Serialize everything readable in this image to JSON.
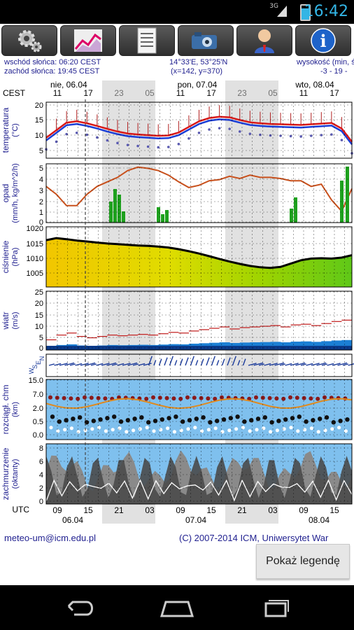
{
  "status_bar": {
    "time": "16:42",
    "network": "3G",
    "icons": [
      "signal-icon",
      "battery-charging-icon"
    ]
  },
  "toolbar": {
    "buttons": [
      {
        "icon": "gears-icon"
      },
      {
        "icon": "chart-icon"
      },
      {
        "icon": "document-icon"
      },
      {
        "icon": "camera-icon"
      },
      {
        "icon": "user-icon"
      },
      {
        "icon": "info-icon"
      }
    ]
  },
  "info": {
    "sunrise": "wschód słońca: 06:20 CEST",
    "sunset": "zachód słońca: 19:45 CEST",
    "coords": "14°33'E, 53°25'N",
    "grid": "(x=142, y=370)",
    "height_label": "wysokość (min, ś",
    "height_values": "-3 - 19 -"
  },
  "chart": {
    "top_axis": {
      "timezone": "CEST",
      "days": [
        "nie, 06.04",
        "pon, 07.04",
        "wto, 08.04"
      ],
      "hours": [
        "11",
        "17",
        "23",
        "05",
        "11",
        "17",
        "23",
        "05",
        "11",
        "17"
      ]
    },
    "bottom_axis": {
      "timezone": "UTC",
      "hours": [
        "09",
        "15",
        "21",
        "03",
        "09",
        "15",
        "21",
        "03",
        "09",
        "15"
      ],
      "days": [
        "06.04",
        "07.04",
        "08.04"
      ]
    },
    "panels": [
      {
        "label": "temperatura",
        "unit": "(°C)",
        "ticks": [
          "20",
          "15",
          "10",
          "5"
        ]
      },
      {
        "label": "opad",
        "unit": "(mm/h, kg/m^2/h)",
        "ticks": [
          "5",
          "4",
          "3",
          "2",
          "1",
          "0"
        ]
      },
      {
        "label": "ciśnienie",
        "unit": "(hPa)",
        "ticks": [
          "1020",
          "1015",
          "1010",
          "1005"
        ]
      },
      {
        "label": "wiatr",
        "unit": "(m/s)",
        "ticks": [
          "25",
          "20",
          "15",
          "10",
          "5",
          "0"
        ]
      },
      {
        "label": "",
        "unit": "",
        "ticks": [],
        "wind_dir_labels": [
          "W",
          "S",
          "E",
          "N"
        ]
      },
      {
        "label": "rozciągł. chm",
        "unit": "(km)",
        "ticks": [
          "15.0",
          "7.0",
          "2.0",
          "0.5",
          "0.0"
        ]
      },
      {
        "label": "zachmurzenie",
        "unit": "(oktanty)",
        "ticks": [
          "8",
          "6",
          "4",
          "2",
          "0"
        ]
      }
    ],
    "series": {
      "temperature": [
        10.2,
        12.5,
        14.8,
        15.2,
        14.6,
        13.8,
        12.9,
        12.1,
        11.5,
        11.2,
        11.0,
        10.8,
        10.9,
        11.8,
        13.5,
        15.2,
        16.2,
        16.6,
        16.4,
        15.6,
        14.9,
        14.6,
        14.4,
        14.3,
        14.2,
        14.1,
        14.3,
        14.5,
        14.7,
        13.0,
        9.0
      ],
      "pressure": [
        1017.0,
        1017.6,
        1017.3,
        1016.9,
        1016.6,
        1016.3,
        1016.0,
        1015.8,
        1015.6,
        1015.4,
        1015.3,
        1015.1,
        1014.8,
        1014.3,
        1013.7,
        1013.0,
        1012.2,
        1011.4,
        1010.6,
        1009.9,
        1009.3,
        1008.9,
        1008.7,
        1009.0,
        1010.0,
        1011.0,
        1011.5,
        1011.6,
        1011.5,
        1011.8,
        1012.5
      ],
      "wind": [
        1.5,
        2.2,
        2.5,
        2.0,
        1.8,
        2.0,
        2.2,
        2.1,
        2.2,
        2.3,
        2.2,
        2.4,
        2.6,
        2.5,
        2.8,
        3.0,
        3.2,
        3.4,
        3.1,
        3.3,
        3.4,
        3.5,
        3.6,
        3.4,
        3.7,
        3.8,
        3.6,
        3.9,
        4.2,
        4.4,
        4.6
      ],
      "precip_curve": [
        3.2,
        2.5,
        1.5,
        1.5,
        2.5,
        3.2,
        3.6,
        4.0,
        4.6,
        4.9,
        4.8,
        4.6,
        4.2,
        3.6,
        3.1,
        3.3,
        3.7,
        3.8,
        4.1,
        3.9,
        4.2,
        4.0,
        4.0,
        3.9,
        3.7,
        3.7,
        3.2,
        3.4,
        2.0,
        1.0,
        3.0
      ]
    }
  },
  "footer": {
    "email": "meteo-um@icm.edu.pl",
    "copyright": "(C) 2007-2014 ICM, Uniwersytet War",
    "legend_button": "Pokaż legendę"
  },
  "nav_bar": {
    "icons": [
      "back-icon",
      "home-icon",
      "recent-apps-icon"
    ]
  }
}
